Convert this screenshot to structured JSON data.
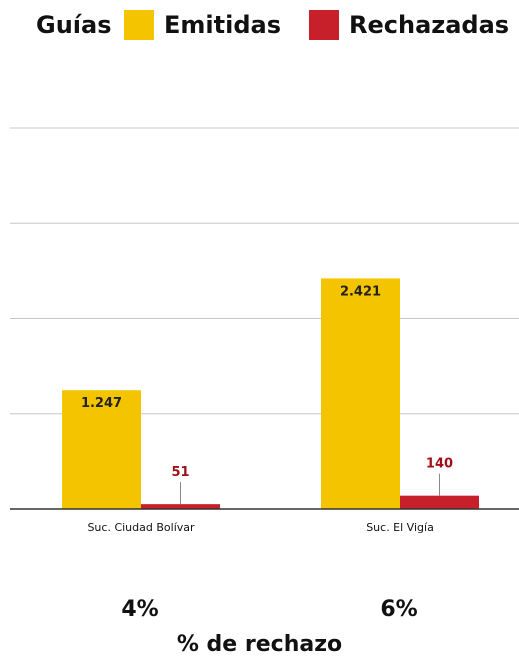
{
  "legend": {
    "title": "Guías",
    "items": [
      {
        "label": "Emitidas",
        "color": "#F5C400"
      },
      {
        "label": "Rechazadas",
        "color": "#C8202A"
      }
    ]
  },
  "chart_data": {
    "type": "bar",
    "categories": [
      "Suc. Ciudad Bolívar",
      "Suc. El Vigía"
    ],
    "series": [
      {
        "name": "Emitidas",
        "color": "#F5C400",
        "values": [
          1247,
          2421
        ],
        "labels": [
          "1.247",
          "2.421"
        ]
      },
      {
        "name": "Rechazadas",
        "color": "#C8202A",
        "values": [
          51,
          140
        ],
        "labels": [
          "51",
          "140"
        ]
      }
    ],
    "ylim": [
      0,
      4000
    ],
    "grid": true
  },
  "percentages": [
    "4%",
    "6%"
  ],
  "footer_label": "% de rechazo"
}
